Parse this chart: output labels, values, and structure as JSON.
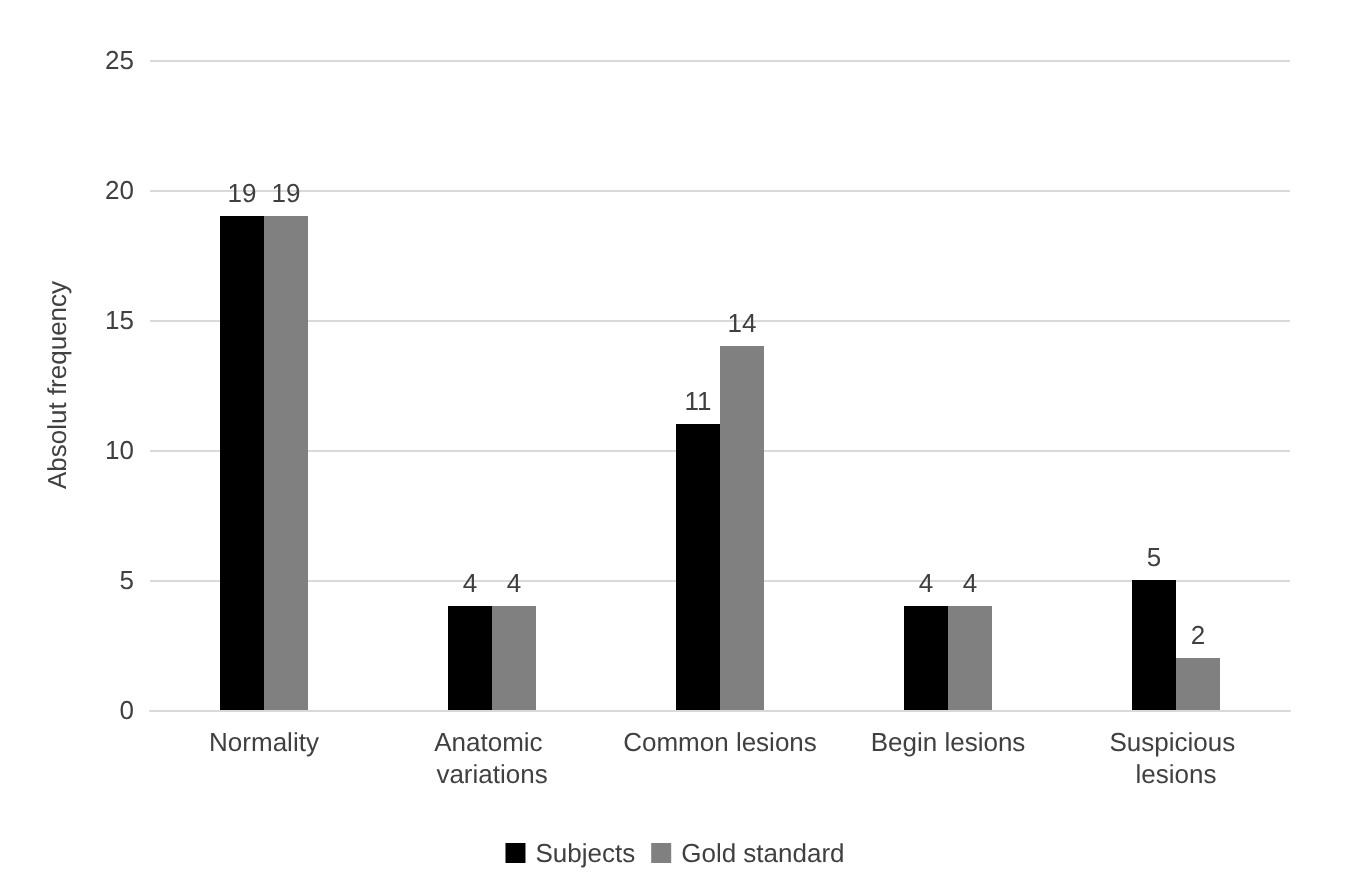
{
  "chart_data": {
    "type": "bar",
    "ylabel": "Absolut frequency",
    "categories": [
      "Normality",
      "Anatomic variations",
      "Common lesions",
      "Begin lesions",
      "Suspicious lesions"
    ],
    "series": [
      {
        "name": "Subjects",
        "color": "#000000",
        "values": [
          19,
          4,
          11,
          4,
          5
        ]
      },
      {
        "name": "Gold standard",
        "color": "#808080",
        "values": [
          19,
          4,
          14,
          4,
          2
        ]
      }
    ],
    "ylim": [
      0,
      25
    ],
    "yticks": [
      0,
      5,
      10,
      15,
      20,
      25
    ],
    "grid": "y",
    "legend": "bottom",
    "data_labels": true
  }
}
